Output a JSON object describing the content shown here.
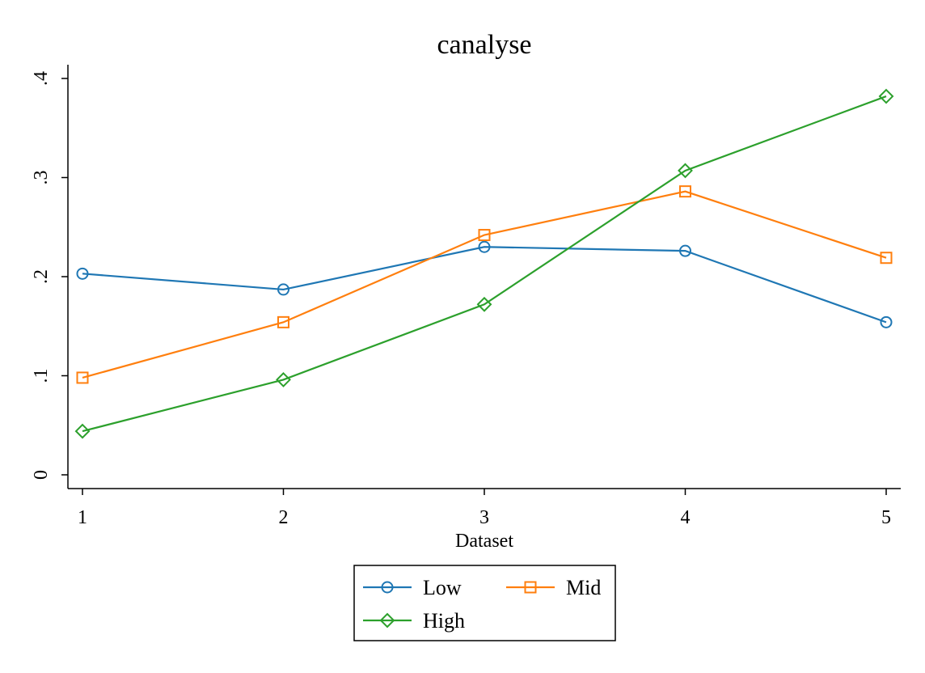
{
  "chart_data": {
    "type": "line",
    "title": "canalyse",
    "xlabel": "Dataset",
    "ylabel": "",
    "x": [
      1,
      2,
      3,
      4,
      5
    ],
    "x_ticks": [
      "1",
      "2",
      "3",
      "4",
      "5"
    ],
    "y_ticks": [
      0,
      0.1,
      0.2,
      0.3,
      0.4
    ],
    "y_tick_labels": [
      "0",
      ".1",
      ".2",
      ".3",
      ".4"
    ],
    "ylim": [
      0,
      0.4
    ],
    "grid": false,
    "legend_position": "bottom",
    "series": [
      {
        "name": "Low",
        "color": "#1f77b4",
        "marker": "circle",
        "values": [
          0.203,
          0.187,
          0.23,
          0.226,
          0.154
        ]
      },
      {
        "name": "Mid",
        "color": "#ff7f0e",
        "marker": "square",
        "values": [
          0.098,
          0.154,
          0.242,
          0.286,
          0.219
        ]
      },
      {
        "name": "High",
        "color": "#2ca02c",
        "marker": "diamond",
        "values": [
          0.044,
          0.096,
          0.172,
          0.307,
          0.382
        ]
      }
    ]
  }
}
